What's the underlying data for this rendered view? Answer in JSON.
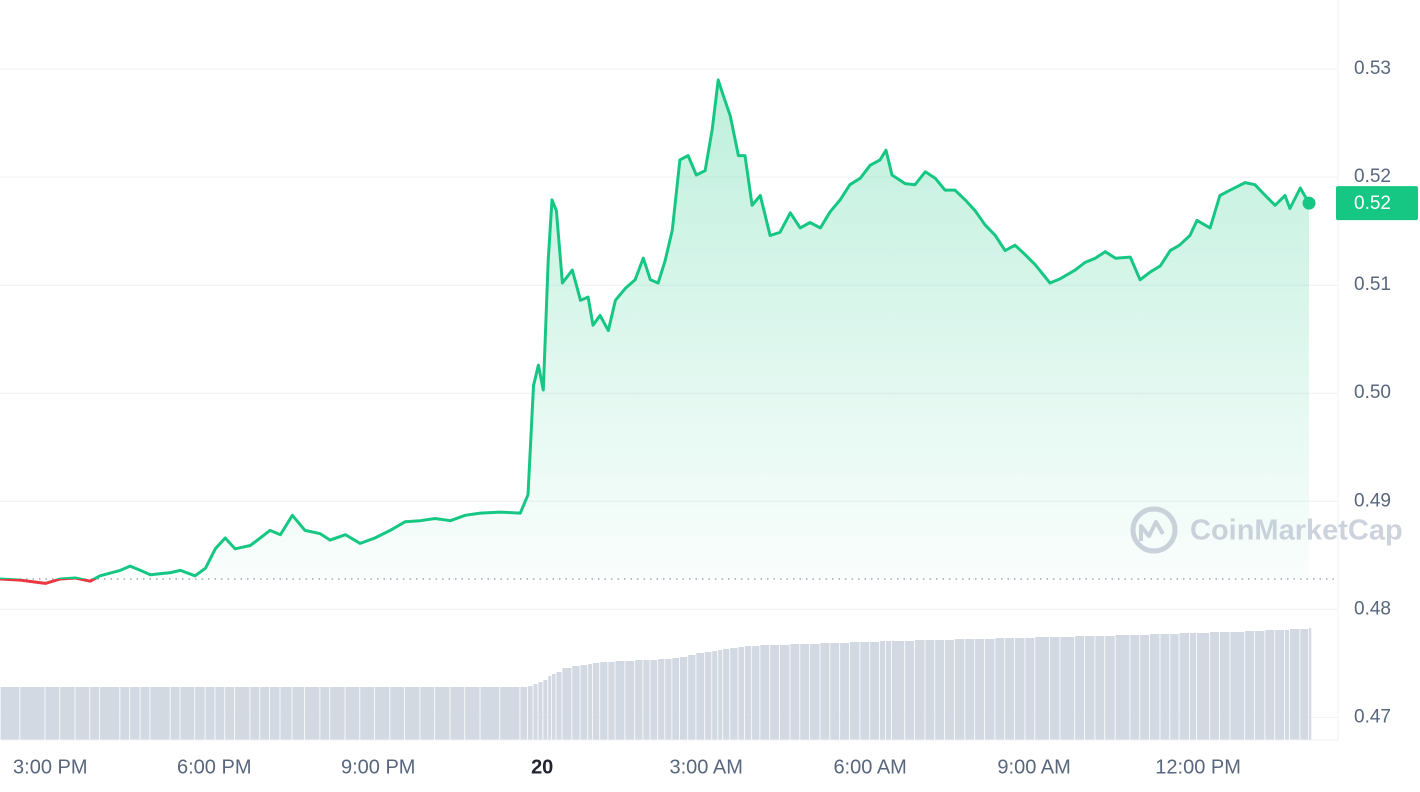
{
  "chart_data": {
    "type": "line",
    "color": "#16c784",
    "down_color": "#ea3943",
    "baseline": 0.4828,
    "x": [
      14.09,
      14.45,
      14.91,
      15.18,
      15.46,
      15.73,
      15.91,
      16.28,
      16.46,
      16.65,
      16.83,
      17.2,
      17.38,
      17.65,
      17.84,
      18.02,
      18.2,
      18.38,
      18.66,
      18.84,
      19.02,
      19.21,
      19.43,
      19.66,
      19.94,
      20.12,
      20.4,
      20.67,
      20.94,
      21.22,
      21.49,
      21.77,
      22.04,
      22.32,
      22.59,
      22.87,
      23.23,
      23.6,
      23.74,
      23.84,
      23.93,
      24.02,
      24.11,
      24.18,
      24.26,
      24.37,
      24.55,
      24.7,
      24.84,
      24.93,
      25.06,
      25.21,
      25.34,
      25.52,
      25.7,
      25.85,
      25.98,
      26.12,
      26.25,
      26.38,
      26.52,
      26.67,
      26.82,
      26.98,
      27.11,
      27.22,
      27.31,
      27.44,
      27.59,
      27.71,
      27.84,
      27.99,
      28.17,
      28.35,
      28.54,
      28.72,
      28.9,
      29.09,
      29.27,
      29.45,
      29.63,
      29.82,
      30.0,
      30.18,
      30.29,
      30.4,
      30.64,
      30.82,
      31.01,
      31.19,
      31.37,
      31.55,
      31.74,
      31.92,
      32.1,
      32.29,
      32.47,
      32.65,
      32.84,
      33.02,
      33.29,
      33.48,
      33.75,
      33.93,
      34.12,
      34.3,
      34.49,
      34.76,
      34.94,
      35.12,
      35.31,
      35.49,
      35.66,
      35.85,
      35.98,
      36.22,
      36.4,
      36.59,
      36.86,
      37.04,
      37.23,
      37.41,
      37.59,
      37.68,
      37.87,
      38.03
    ],
    "values": [
      0.4828,
      0.4827,
      0.4824,
      0.4828,
      0.4829,
      0.4826,
      0.4831,
      0.4836,
      0.484,
      0.4836,
      0.4832,
      0.4834,
      0.4836,
      0.4831,
      0.4838,
      0.4856,
      0.4866,
      0.4856,
      0.4859,
      0.4866,
      0.4873,
      0.4869,
      0.4887,
      0.4873,
      0.487,
      0.4864,
      0.4869,
      0.4861,
      0.4866,
      0.4873,
      0.4881,
      0.4882,
      0.4884,
      0.4882,
      0.4887,
      0.4889,
      0.489,
      0.4889,
      0.4906,
      0.5007,
      0.5026,
      0.5003,
      0.5123,
      0.5179,
      0.5169,
      0.5102,
      0.5114,
      0.5086,
      0.5089,
      0.5063,
      0.5072,
      0.5058,
      0.5086,
      0.5097,
      0.5105,
      0.5125,
      0.5105,
      0.5102,
      0.5123,
      0.5151,
      0.5216,
      0.522,
      0.5202,
      0.5206,
      0.5244,
      0.529,
      0.5276,
      0.5257,
      0.522,
      0.522,
      0.5174,
      0.5183,
      0.5146,
      0.5149,
      0.5167,
      0.5153,
      0.5158,
      0.5153,
      0.5168,
      0.5179,
      0.5193,
      0.5199,
      0.5211,
      0.5216,
      0.5225,
      0.5202,
      0.5194,
      0.5193,
      0.5205,
      0.5199,
      0.5188,
      0.5188,
      0.5179,
      0.5169,
      0.5156,
      0.5146,
      0.5132,
      0.5137,
      0.5128,
      0.5119,
      0.5102,
      0.5106,
      0.5114,
      0.5121,
      0.5125,
      0.5131,
      0.5125,
      0.5126,
      0.5105,
      0.5112,
      0.5118,
      0.5132,
      0.5137,
      0.5146,
      0.516,
      0.5153,
      0.5183,
      0.5188,
      0.5195,
      0.5193,
      0.5183,
      0.5174,
      0.5183,
      0.5171,
      0.519,
      0.5176
    ],
    "current_price": {
      "value": 0.5176,
      "label": "0.52"
    },
    "volume": {
      "color": "#d3d9e3",
      "lim": [
        0,
        160
      ],
      "values": [
        53,
        53,
        53,
        53,
        53,
        53,
        53,
        53,
        53,
        53,
        53,
        53,
        53,
        53,
        53,
        53,
        53,
        53,
        53,
        53,
        53,
        53,
        53,
        53,
        53,
        53,
        53,
        53,
        53,
        53,
        53,
        53,
        53,
        53,
        53,
        53,
        53,
        53,
        54,
        56,
        58,
        60,
        64,
        66,
        68,
        72,
        74,
        75,
        76,
        77,
        78,
        78,
        79,
        79,
        80,
        80,
        80,
        81,
        81,
        82,
        83,
        85,
        87,
        88,
        89,
        90,
        91,
        92,
        93,
        94,
        94,
        95,
        95,
        95,
        96,
        96,
        96,
        97,
        97,
        97,
        98,
        98,
        98,
        99,
        99,
        99,
        99,
        100,
        100,
        100,
        100,
        101,
        101,
        101,
        101,
        102,
        102,
        102,
        102,
        103,
        103,
        103,
        104,
        104,
        104,
        104,
        105,
        105,
        105,
        106,
        106,
        106,
        107,
        107,
        107,
        108,
        108,
        108,
        109,
        109,
        110,
        110,
        110,
        111,
        111,
        112
      ]
    },
    "xlim": [
      14.08,
      38.56
    ],
    "xticks": [
      {
        "value": 15,
        "label": "3:00 PM"
      },
      {
        "value": 18,
        "label": "6:00 PM"
      },
      {
        "value": 21,
        "label": "9:00 PM"
      },
      {
        "value": 24,
        "label": "20"
      },
      {
        "value": 27,
        "label": "3:00 AM"
      },
      {
        "value": 30,
        "label": "6:00 AM"
      },
      {
        "value": 33,
        "label": "9:00 AM"
      },
      {
        "value": 36,
        "label": "12:00 PM"
      }
    ],
    "ylim": [
      0.4679,
      0.5364
    ],
    "yticks": [
      0.47,
      0.48,
      0.49,
      {
        "value": 0.5,
        "label": "0.50"
      },
      0.51,
      0.52,
      0.53
    ],
    "grid": true,
    "watermark": "CoinMarketCap"
  }
}
